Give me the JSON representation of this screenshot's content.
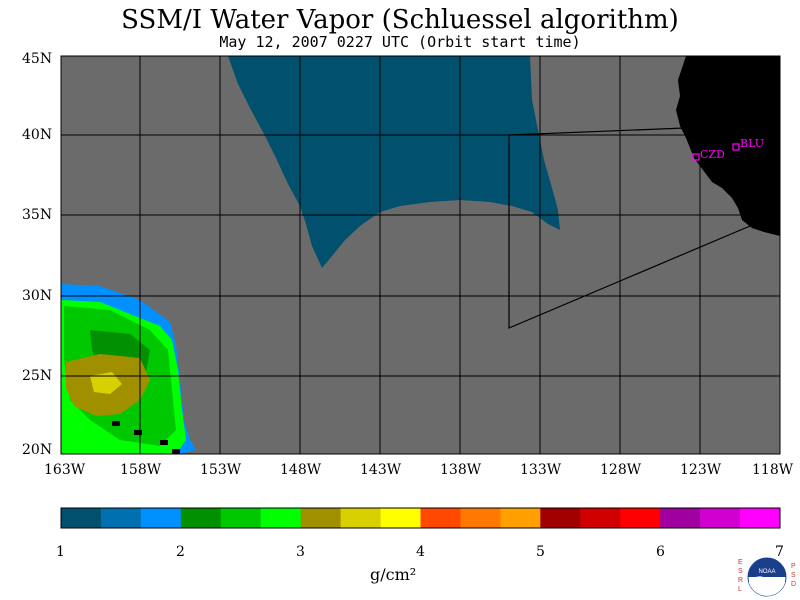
{
  "title": "SSM/I Water Vapor (Schluessel algorithm)",
  "subtitle": "May 12, 2007  0227 UTC  (Orbit start time)",
  "map": {
    "lat_labels": [
      "45N",
      "40N",
      "35N",
      "30N",
      "25N",
      "20N"
    ],
    "lon_labels": [
      "163W",
      "158W",
      "153W",
      "148W",
      "143W",
      "138W",
      "133W",
      "128W",
      "123W",
      "118W"
    ],
    "stations": [
      {
        "id": "czd",
        "label": "CZD"
      },
      {
        "id": "blu",
        "label": "BLU"
      }
    ],
    "colors": {
      "no_data": "#6b6b6b",
      "land": "#000000",
      "station": "#ff00ff"
    }
  },
  "colorbar": {
    "ticks": [
      "1",
      "2",
      "3",
      "4",
      "5",
      "6",
      "7"
    ],
    "units": "g/cm²",
    "colors": [
      "#00506e",
      "#0070b0",
      "#0090ff",
      "#009000",
      "#00c800",
      "#00ff00",
      "#a09000",
      "#d8d000",
      "#ffff00",
      "#ff4800",
      "#ff7800",
      "#ffa000",
      "#a00000",
      "#d00000",
      "#ff0000",
      "#a000a0",
      "#d000d0",
      "#ff00ff"
    ]
  },
  "logo": {
    "left_letters": "ESRL",
    "right_letters": "PSD",
    "center_text": "NOAA"
  }
}
